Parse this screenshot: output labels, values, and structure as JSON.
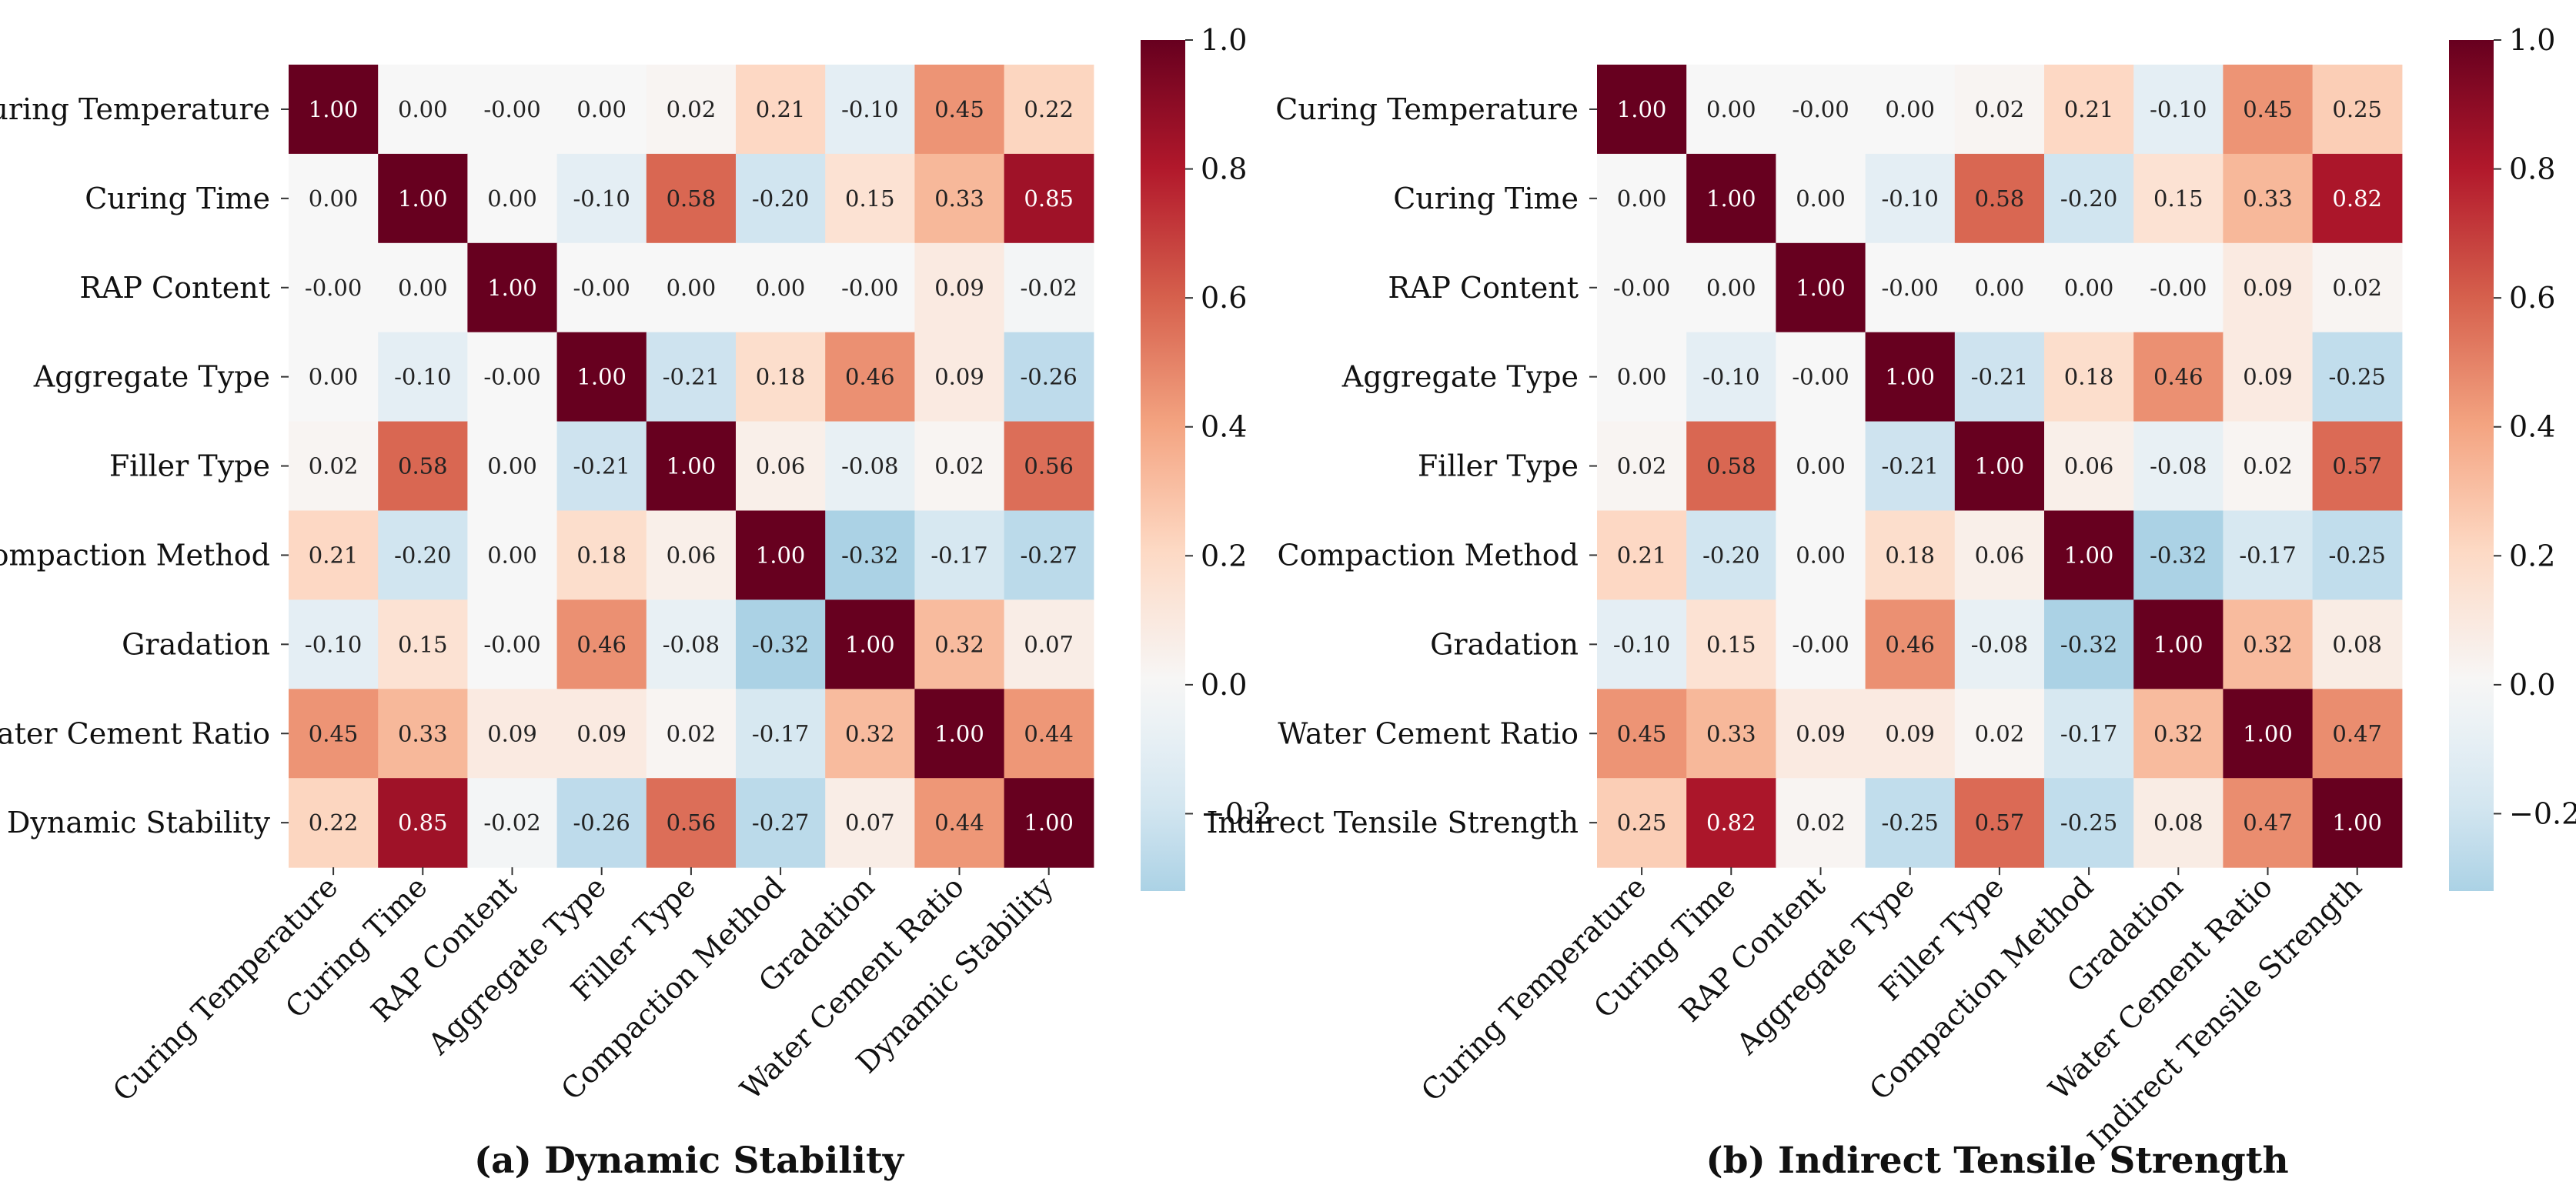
{
  "figure": {
    "colorbar_ticks": [
      "1.0",
      "0.8",
      "0.6",
      "0.4",
      "0.2",
      "0.0",
      "−0.2"
    ],
    "colorbar_tick_values": [
      1.0,
      0.8,
      0.6,
      0.4,
      0.2,
      0.0,
      -0.2
    ],
    "color_range": [
      -0.32,
      1.0
    ],
    "colormap": "RdBu_r",
    "colors": {
      "text_dark": "#222222",
      "text_light": "#ffffff",
      "tick": "#333333"
    }
  },
  "chart_data": [
    {
      "type": "heatmap",
      "title": "(a) Dynamic Stability",
      "labels": [
        "Curing Temperature",
        "Curing Time",
        "RAP Content",
        "Aggregate Type",
        "Filler Type",
        "Compaction Method",
        "Gradation",
        "Water Cement Ratio",
        "Dynamic Stability"
      ],
      "values": [
        [
          1.0,
          0.0,
          -0.0,
          0.0,
          0.02,
          0.21,
          -0.1,
          0.45,
          0.22
        ],
        [
          0.0,
          1.0,
          0.0,
          -0.1,
          0.58,
          -0.2,
          0.15,
          0.33,
          0.85
        ],
        [
          -0.0,
          0.0,
          1.0,
          -0.0,
          0.0,
          0.0,
          -0.0,
          0.09,
          -0.02
        ],
        [
          0.0,
          -0.1,
          -0.0,
          1.0,
          -0.21,
          0.18,
          0.46,
          0.09,
          -0.26
        ],
        [
          0.02,
          0.58,
          0.0,
          -0.21,
          1.0,
          0.06,
          -0.08,
          0.02,
          0.56
        ],
        [
          0.21,
          -0.2,
          0.0,
          0.18,
          0.06,
          1.0,
          -0.32,
          -0.17,
          -0.27
        ],
        [
          -0.1,
          0.15,
          -0.0,
          0.46,
          -0.08,
          -0.32,
          1.0,
          0.32,
          0.07
        ],
        [
          0.45,
          0.33,
          0.09,
          0.09,
          0.02,
          -0.17,
          0.32,
          1.0,
          0.44
        ],
        [
          0.22,
          0.85,
          -0.02,
          -0.26,
          0.56,
          -0.27,
          0.07,
          0.44,
          1.0
        ]
      ],
      "display": [
        [
          "1.00",
          "0.00",
          "-0.00",
          "0.00",
          "0.02",
          "0.21",
          "-0.10",
          "0.45",
          "0.22"
        ],
        [
          "0.00",
          "1.00",
          "0.00",
          "-0.10",
          "0.58",
          "-0.20",
          "0.15",
          "0.33",
          "0.85"
        ],
        [
          "-0.00",
          "0.00",
          "1.00",
          "-0.00",
          "0.00",
          "0.00",
          "-0.00",
          "0.09",
          "-0.02"
        ],
        [
          "0.00",
          "-0.10",
          "-0.00",
          "1.00",
          "-0.21",
          "0.18",
          "0.46",
          "0.09",
          "-0.26"
        ],
        [
          "0.02",
          "0.58",
          "0.00",
          "-0.21",
          "1.00",
          "0.06",
          "-0.08",
          "0.02",
          "0.56"
        ],
        [
          "0.21",
          "-0.20",
          "0.00",
          "0.18",
          "0.06",
          "1.00",
          "-0.32",
          "-0.17",
          "-0.27"
        ],
        [
          "-0.10",
          "0.15",
          "-0.00",
          "0.46",
          "-0.08",
          "-0.32",
          "1.00",
          "0.32",
          "0.07"
        ],
        [
          "0.45",
          "0.33",
          "0.09",
          "0.09",
          "0.02",
          "-0.17",
          "0.32",
          "1.00",
          "0.44"
        ],
        [
          "0.22",
          "0.85",
          "-0.02",
          "-0.26",
          "0.56",
          "-0.27",
          "0.07",
          "0.44",
          "1.00"
        ]
      ],
      "vmin": -0.32,
      "vmax": 1.0,
      "colorbar": {
        "min": -0.32,
        "max": 1.0,
        "ticks": [
          1.0,
          0.8,
          0.6,
          0.4,
          0.2,
          0.0,
          -0.2
        ]
      }
    },
    {
      "type": "heatmap",
      "title": "(b) Indirect Tensile Strength",
      "labels": [
        "Curing Temperature",
        "Curing Time",
        "RAP Content",
        "Aggregate Type",
        "Filler Type",
        "Compaction Method",
        "Gradation",
        "Water Cement Ratio",
        "Indirect Tensile Strength"
      ],
      "values": [
        [
          1.0,
          0.0,
          -0.0,
          0.0,
          0.02,
          0.21,
          -0.1,
          0.45,
          0.25
        ],
        [
          0.0,
          1.0,
          0.0,
          -0.1,
          0.58,
          -0.2,
          0.15,
          0.33,
          0.82
        ],
        [
          -0.0,
          0.0,
          1.0,
          -0.0,
          0.0,
          0.0,
          -0.0,
          0.09,
          0.02
        ],
        [
          0.0,
          -0.1,
          -0.0,
          1.0,
          -0.21,
          0.18,
          0.46,
          0.09,
          -0.25
        ],
        [
          0.02,
          0.58,
          0.0,
          -0.21,
          1.0,
          0.06,
          -0.08,
          0.02,
          0.57
        ],
        [
          0.21,
          -0.2,
          0.0,
          0.18,
          0.06,
          1.0,
          -0.32,
          -0.17,
          -0.25
        ],
        [
          -0.1,
          0.15,
          -0.0,
          0.46,
          -0.08,
          -0.32,
          1.0,
          0.32,
          0.08
        ],
        [
          0.45,
          0.33,
          0.09,
          0.09,
          0.02,
          -0.17,
          0.32,
          1.0,
          0.47
        ],
        [
          0.25,
          0.82,
          0.02,
          -0.25,
          0.57,
          -0.25,
          0.08,
          0.47,
          1.0
        ]
      ],
      "display": [
        [
          "1.00",
          "0.00",
          "-0.00",
          "0.00",
          "0.02",
          "0.21",
          "-0.10",
          "0.45",
          "0.25"
        ],
        [
          "0.00",
          "1.00",
          "0.00",
          "-0.10",
          "0.58",
          "-0.20",
          "0.15",
          "0.33",
          "0.82"
        ],
        [
          "-0.00",
          "0.00",
          "1.00",
          "-0.00",
          "0.00",
          "0.00",
          "-0.00",
          "0.09",
          "0.02"
        ],
        [
          "0.00",
          "-0.10",
          "-0.00",
          "1.00",
          "-0.21",
          "0.18",
          "0.46",
          "0.09",
          "-0.25"
        ],
        [
          "0.02",
          "0.58",
          "0.00",
          "-0.21",
          "1.00",
          "0.06",
          "-0.08",
          "0.02",
          "0.57"
        ],
        [
          "0.21",
          "-0.20",
          "0.00",
          "0.18",
          "0.06",
          "1.00",
          "-0.32",
          "-0.17",
          "-0.25"
        ],
        [
          "-0.10",
          "0.15",
          "-0.00",
          "0.46",
          "-0.08",
          "-0.32",
          "1.00",
          "0.32",
          "0.08"
        ],
        [
          "0.45",
          "0.33",
          "0.09",
          "0.09",
          "0.02",
          "-0.17",
          "0.32",
          "1.00",
          "0.47"
        ],
        [
          "0.25",
          "0.82",
          "0.02",
          "-0.25",
          "0.57",
          "-0.25",
          "0.08",
          "0.47",
          "1.00"
        ]
      ],
      "vmin": -0.32,
      "vmax": 1.0,
      "colorbar": {
        "min": -0.32,
        "max": 1.0,
        "ticks": [
          1.0,
          0.8,
          0.6,
          0.4,
          0.2,
          0.0,
          -0.2
        ]
      }
    }
  ]
}
